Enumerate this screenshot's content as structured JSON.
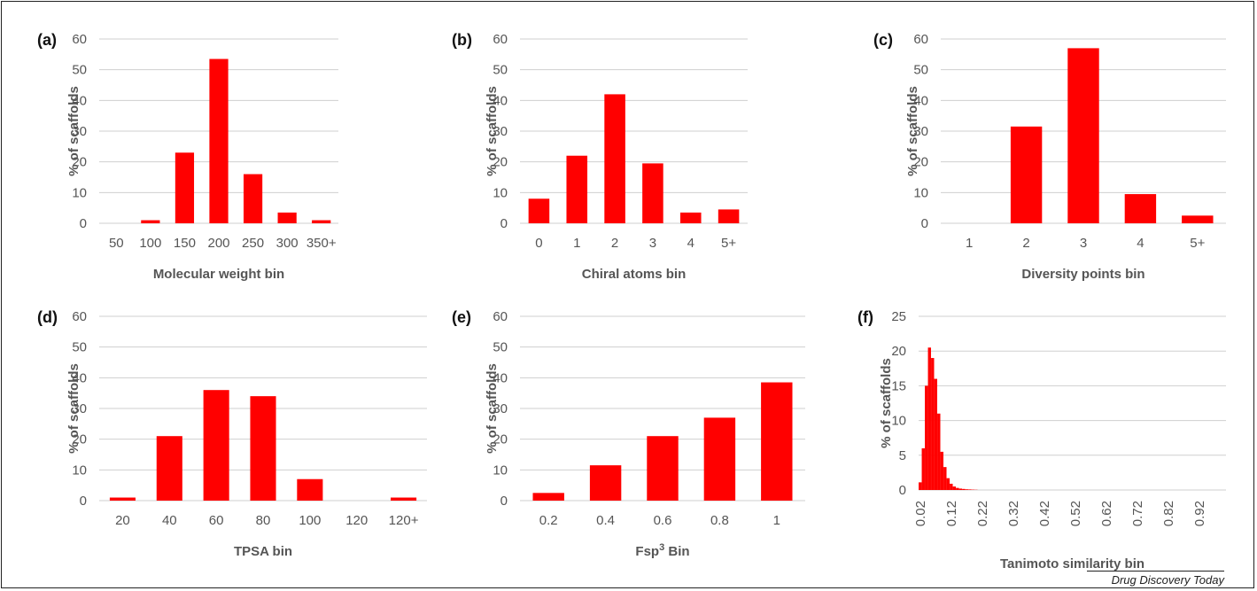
{
  "credit": "Drug Discovery Today",
  "colors": {
    "bar": "#ff0000",
    "grid": "#cfcfcf",
    "text": "#555555"
  },
  "chart_data": [
    {
      "id": "a",
      "panel_label": "(a)",
      "type": "bar",
      "categories": [
        "50",
        "100",
        "150",
        "200",
        "250",
        "300",
        "350+"
      ],
      "values": [
        0,
        1,
        23,
        53.5,
        16,
        3.5,
        1
      ],
      "xlabel": "Molecular weight bin",
      "ylabel": "% of scaffolds",
      "ylim": [
        0,
        60
      ],
      "yticks": [
        0,
        10,
        20,
        30,
        40,
        50,
        60
      ],
      "grid": true
    },
    {
      "id": "b",
      "panel_label": "(b)",
      "type": "bar",
      "categories": [
        "0",
        "1",
        "2",
        "3",
        "4",
        "5+"
      ],
      "values": [
        8,
        22,
        42,
        19.5,
        3.5,
        4.5
      ],
      "xlabel": "Chiral atoms bin",
      "ylabel": "% of scaffolds",
      "ylim": [
        0,
        60
      ],
      "yticks": [
        0,
        10,
        20,
        30,
        40,
        50,
        60
      ],
      "grid": true
    },
    {
      "id": "c",
      "panel_label": "(c)",
      "type": "bar",
      "categories": [
        "1",
        "2",
        "3",
        "4",
        "5+"
      ],
      "values": [
        0,
        31.5,
        57,
        9.5,
        2.5
      ],
      "xlabel": "Diversity points bin",
      "ylabel": "% of scaffolds",
      "ylim": [
        0,
        60
      ],
      "yticks": [
        0,
        10,
        20,
        30,
        40,
        50,
        60
      ],
      "grid": true
    },
    {
      "id": "d",
      "panel_label": "(d)",
      "type": "bar",
      "categories": [
        "20",
        "40",
        "60",
        "80",
        "100",
        "120",
        "120+"
      ],
      "values": [
        1,
        21,
        36,
        34,
        7,
        0,
        1
      ],
      "xlabel": "TPSA bin",
      "ylabel": "% of scaffolds",
      "ylim": [
        0,
        60
      ],
      "yticks": [
        0,
        10,
        20,
        30,
        40,
        50,
        60
      ],
      "grid": true
    },
    {
      "id": "e",
      "panel_label": "(e)",
      "type": "bar",
      "categories": [
        "0.2",
        "0.4",
        "0.6",
        "0.8",
        "1"
      ],
      "values": [
        2.5,
        11.5,
        21,
        27,
        38.5
      ],
      "xlabel": "Fsp",
      "xlabel_sup": "3",
      "xlabel_after": " Bin",
      "ylabel": "% of scaffolds",
      "ylim": [
        0,
        60
      ],
      "yticks": [
        0,
        10,
        20,
        30,
        40,
        50,
        60
      ],
      "grid": true
    },
    {
      "id": "f",
      "panel_label": "(f)",
      "type": "bar",
      "categories": [
        "0.02",
        "0.03",
        "0.04",
        "0.05",
        "0.06",
        "0.07",
        "0.08",
        "0.09",
        "0.1",
        "0.11",
        "0.12",
        "0.13",
        "0.14",
        "0.15",
        "0.16",
        "0.17",
        "0.18",
        "0.19",
        "0.2",
        "0.21",
        "0.22",
        "0.23",
        "0.24",
        "0.25",
        "0.26",
        "0.27",
        "0.28",
        "0.29",
        "0.3",
        "0.31",
        "0.32",
        "0.33",
        "0.34",
        "0.35",
        "0.36",
        "0.37",
        "0.38",
        "0.39",
        "0.4",
        "0.41",
        "0.42",
        "0.43",
        "0.44",
        "0.45",
        "0.46",
        "0.47",
        "0.48",
        "0.49",
        "0.5",
        "0.51",
        "0.52",
        "0.53",
        "0.54",
        "0.55",
        "0.56",
        "0.57",
        "0.58",
        "0.59",
        "0.6",
        "0.61",
        "0.62",
        "0.63",
        "0.64",
        "0.65",
        "0.66",
        "0.67",
        "0.68",
        "0.69",
        "0.7",
        "0.71",
        "0.72",
        "0.73",
        "0.74",
        "0.75",
        "0.76",
        "0.77",
        "0.78",
        "0.79",
        "0.8",
        "0.81",
        "0.82",
        "0.83",
        "0.84",
        "0.85",
        "0.86",
        "0.87",
        "0.88",
        "0.89",
        "0.9",
        "0.91",
        "0.92",
        "0.93",
        "0.94",
        "0.95",
        "0.96",
        "0.97",
        "0.98",
        "0.99",
        "1"
      ],
      "values": [
        1.1,
        6,
        15,
        20.5,
        19,
        16,
        11,
        5.5,
        3.3,
        1.7,
        0.9,
        0.5,
        0.3,
        0.2,
        0.15,
        0.1,
        0.08,
        0.05,
        0.03,
        0.02,
        0.01,
        0,
        0,
        0,
        0,
        0,
        0,
        0,
        0,
        0,
        0,
        0,
        0,
        0,
        0,
        0,
        0,
        0,
        0,
        0,
        0,
        0,
        0,
        0,
        0,
        0,
        0,
        0,
        0,
        0,
        0,
        0,
        0,
        0,
        0,
        0,
        0,
        0,
        0,
        0,
        0,
        0,
        0,
        0,
        0,
        0,
        0,
        0,
        0,
        0,
        0,
        0,
        0,
        0,
        0,
        0,
        0,
        0,
        0,
        0,
        0,
        0,
        0,
        0,
        0,
        0,
        0,
        0,
        0,
        0,
        0,
        0,
        0,
        0,
        0,
        0,
        0,
        0,
        0
      ],
      "xtick_labels": [
        "0.02",
        "0.12",
        "0.22",
        "0.32",
        "0.42",
        "0.52",
        "0.62",
        "0.72",
        "0.82",
        "0.92"
      ],
      "xlabel": "Tanimoto similarity bin",
      "ylabel": "% of scaffolds",
      "ylim": [
        0,
        25
      ],
      "yticks": [
        0,
        5,
        10,
        15,
        20,
        25
      ],
      "grid": true
    }
  ]
}
